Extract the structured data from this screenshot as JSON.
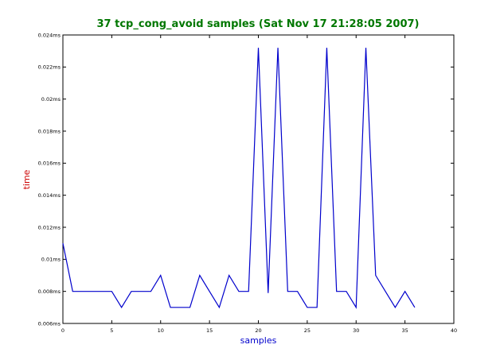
{
  "chart_data": {
    "type": "line",
    "title": "37 tcp_cong_avoid samples (Sat Nov 17 21:28:05 2007)",
    "xlabel": "samples",
    "ylabel": "time",
    "xlim": [
      0,
      40
    ],
    "ylim": [
      0.006,
      0.024
    ],
    "x_ticks": [
      0,
      5,
      10,
      15,
      20,
      25,
      30,
      35,
      40
    ],
    "x_tick_labels": [
      "0",
      "5",
      "10",
      "15",
      "20",
      "25",
      "30",
      "35",
      "40"
    ],
    "y_ticks": [
      0.006,
      0.008,
      0.01,
      0.012,
      0.014,
      0.016,
      0.018,
      0.02,
      0.022,
      0.024
    ],
    "y_tick_labels": [
      "0.006ms",
      "0.008ms",
      "0.01ms",
      "0.012ms",
      "0.014ms",
      "0.016ms",
      "0.018ms",
      "0.02ms",
      "0.022ms",
      "0.024ms"
    ],
    "grid": false,
    "colors": {
      "title": "#007700",
      "xlabel": "#0000cc",
      "ylabel": "#cc0000",
      "line": "#0000cc"
    },
    "series": [
      {
        "x": [
          0,
          1,
          2,
          3,
          4,
          5,
          6,
          7,
          8,
          9,
          10,
          11,
          12,
          13,
          14,
          15,
          16,
          17,
          18,
          19,
          20,
          21,
          22,
          23,
          24,
          25,
          26,
          27,
          28,
          29,
          30,
          31,
          32,
          33,
          34,
          35,
          36
        ],
        "values": [
          0.011,
          0.008,
          0.008,
          0.008,
          0.008,
          0.008,
          0.007,
          0.008,
          0.008,
          0.008,
          0.009,
          0.007,
          0.007,
          0.007,
          0.009,
          0.008,
          0.007,
          0.009,
          0.008,
          0.008,
          0.0232,
          0.0079,
          0.0232,
          0.008,
          0.008,
          0.007,
          0.007,
          0.0232,
          0.008,
          0.008,
          0.007,
          0.0232,
          0.009,
          0.008,
          0.007,
          0.008,
          0.007
        ]
      }
    ]
  }
}
